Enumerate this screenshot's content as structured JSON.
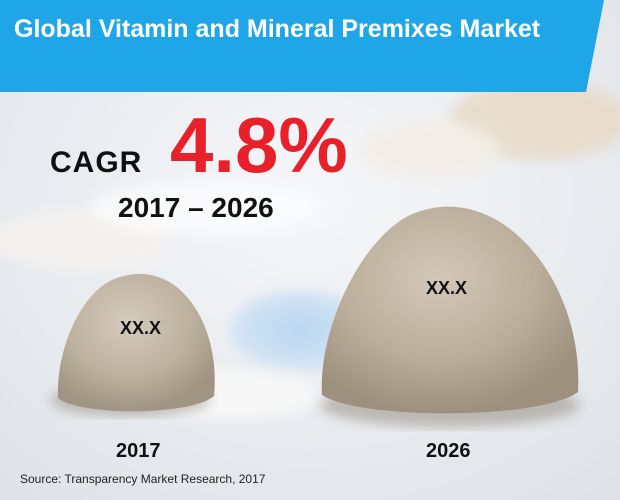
{
  "title": "Global Vitamin and Mineral Premixes Market",
  "cagr": {
    "label": "CAGR",
    "value": "4.8%",
    "period": "2017 – 2026"
  },
  "piles": [
    {
      "year": "2017",
      "value": "XX.X"
    },
    {
      "year": "2026",
      "value": "XX.X"
    }
  ],
  "source": "Source: Transparency Market Research, 2017",
  "colors": {
    "banner": "#1ea6e8",
    "cagr_value": "#e8202a",
    "powder": "#b9ab98"
  }
}
